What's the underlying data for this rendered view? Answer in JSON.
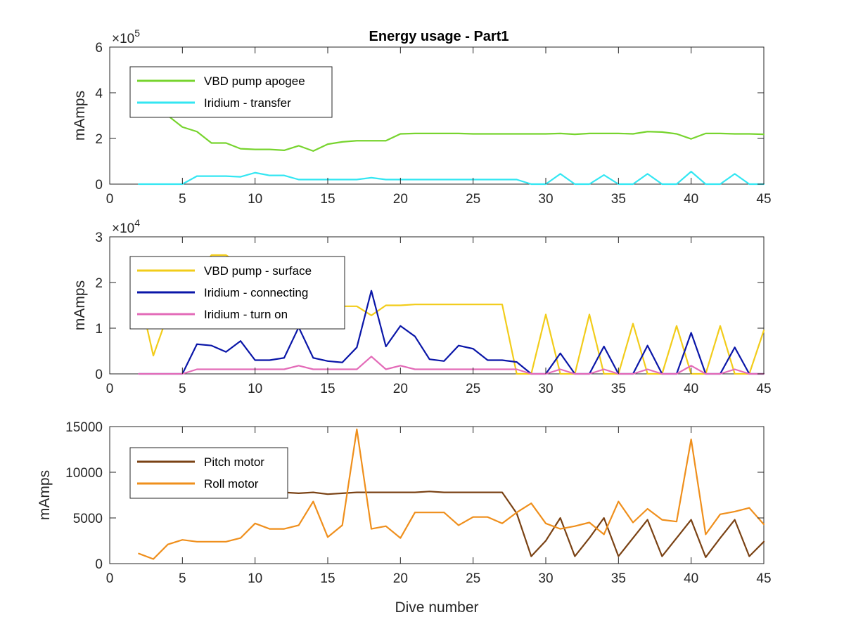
{
  "title": "Energy usage - Part1",
  "chart_data": [
    {
      "type": "line",
      "title": "Energy usage - Part1",
      "xlabel": "",
      "ylabel": "mAmps",
      "xlim": [
        0,
        45
      ],
      "ylim": [
        0,
        600000
      ],
      "xticks": [
        0,
        5,
        10,
        15,
        20,
        25,
        30,
        35,
        40,
        45
      ],
      "xtick_labels": [
        "0",
        "5",
        "10",
        "15",
        "20",
        "25",
        "30",
        "35",
        "40",
        "45"
      ],
      "yticks": [
        0,
        200000,
        400000,
        600000
      ],
      "ytick_labels": [
        "0",
        "2",
        "4",
        "6"
      ],
      "exponent_prefix": "×10",
      "exponent": "5",
      "grid": false,
      "legend_position": "top-left",
      "series": [
        {
          "name": "VBD pump apogee",
          "color": "#77d42e",
          "x": [
            2,
            3,
            4,
            5,
            6,
            7,
            8,
            9,
            10,
            11,
            12,
            13,
            14,
            15,
            16,
            17,
            18,
            19,
            20,
            21,
            22,
            23,
            24,
            25,
            26,
            27,
            28,
            29,
            30,
            31,
            32,
            33,
            34,
            35,
            36,
            37,
            38,
            39,
            40,
            41,
            42,
            43,
            44,
            45
          ],
          "values": [
            420000,
            400000,
            300000,
            250000,
            230000,
            180000,
            180000,
            155000,
            152000,
            152000,
            148000,
            168000,
            145000,
            175000,
            185000,
            190000,
            190000,
            190000,
            220000,
            222000,
            222000,
            222000,
            222000,
            220000,
            220000,
            220000,
            220000,
            220000,
            220000,
            222000,
            218000,
            222000,
            222000,
            222000,
            220000,
            230000,
            228000,
            220000,
            198000,
            222000,
            222000,
            220000,
            220000,
            218000
          ]
        },
        {
          "name": "Iridium - transfer",
          "color": "#33e6f2",
          "x": [
            2,
            3,
            4,
            5,
            6,
            7,
            8,
            9,
            10,
            11,
            12,
            13,
            14,
            15,
            16,
            17,
            18,
            19,
            20,
            21,
            22,
            23,
            24,
            25,
            26,
            27,
            28,
            29,
            30,
            31,
            32,
            33,
            34,
            35,
            36,
            37,
            38,
            39,
            40,
            41,
            42,
            43,
            44,
            45
          ],
          "values": [
            0,
            0,
            0,
            0,
            35000,
            35000,
            35000,
            32000,
            50000,
            38000,
            38000,
            20000,
            20000,
            20000,
            20000,
            20000,
            28000,
            20000,
            20000,
            20000,
            20000,
            20000,
            20000,
            20000,
            20000,
            20000,
            20000,
            0,
            0,
            45000,
            0,
            0,
            40000,
            0,
            0,
            45000,
            0,
            0,
            55000,
            0,
            0,
            45000,
            0,
            0
          ]
        }
      ]
    },
    {
      "type": "line",
      "title": "",
      "xlabel": "",
      "ylabel": "mAmps",
      "xlim": [
        0,
        45
      ],
      "ylim": [
        0,
        30000
      ],
      "xticks": [
        0,
        5,
        10,
        15,
        20,
        25,
        30,
        35,
        40,
        45
      ],
      "xtick_labels": [
        "0",
        "5",
        "10",
        "15",
        "20",
        "25",
        "30",
        "35",
        "40",
        "45"
      ],
      "yticks": [
        0,
        10000,
        20000,
        30000
      ],
      "ytick_labels": [
        "0",
        "1",
        "2",
        "3"
      ],
      "exponent_prefix": "×10",
      "exponent": "4",
      "grid": false,
      "legend_position": "top-left",
      "series": [
        {
          "name": "VBD pump - surface",
          "color": "#f2cc1a",
          "x": [
            2,
            3,
            4,
            5,
            6,
            7,
            8,
            9,
            10,
            11,
            12,
            13,
            14,
            15,
            16,
            17,
            18,
            19,
            20,
            21,
            22,
            23,
            24,
            25,
            26,
            27,
            28,
            29,
            30,
            31,
            32,
            33,
            34,
            35,
            36,
            37,
            38,
            39,
            40,
            41,
            42,
            43,
            44,
            45
          ],
          "values": [
            18000,
            4000,
            13000,
            20000,
            22000,
            26000,
            26000,
            24000,
            20000,
            17000,
            15000,
            15000,
            15000,
            14800,
            14800,
            14800,
            12800,
            15000,
            15000,
            15200,
            15200,
            15200,
            15200,
            15200,
            15200,
            15200,
            0,
            0,
            13000,
            0,
            0,
            13000,
            0,
            0,
            11000,
            0,
            0,
            10500,
            0,
            0,
            10500,
            0,
            0,
            9500
          ]
        },
        {
          "name": "Iridium - connecting",
          "color": "#0a16a8",
          "x": [
            2,
            3,
            4,
            5,
            6,
            7,
            8,
            9,
            10,
            11,
            12,
            13,
            14,
            15,
            16,
            17,
            18,
            19,
            20,
            21,
            22,
            23,
            24,
            25,
            26,
            27,
            28,
            29,
            30,
            31,
            32,
            33,
            34,
            35,
            36,
            37,
            38,
            39,
            40,
            41,
            42,
            43,
            44,
            45
          ],
          "values": [
            0,
            0,
            0,
            0,
            6500,
            6200,
            4800,
            7200,
            3000,
            3000,
            3500,
            10200,
            3500,
            2800,
            2500,
            5800,
            18200,
            6000,
            10500,
            8200,
            3200,
            2800,
            6200,
            5500,
            3000,
            3000,
            2600,
            0,
            0,
            4500,
            0,
            0,
            6000,
            0,
            0,
            6200,
            0,
            0,
            9000,
            0,
            0,
            5800,
            0,
            0
          ]
        },
        {
          "name": "Iridium - turn on",
          "color": "#e36bb8",
          "x": [
            2,
            3,
            4,
            5,
            6,
            7,
            8,
            9,
            10,
            11,
            12,
            13,
            14,
            15,
            16,
            17,
            18,
            19,
            20,
            21,
            22,
            23,
            24,
            25,
            26,
            27,
            28,
            29,
            30,
            31,
            32,
            33,
            34,
            35,
            36,
            37,
            38,
            39,
            40,
            41,
            42,
            43,
            44,
            45
          ],
          "values": [
            0,
            0,
            0,
            0,
            1000,
            1000,
            1000,
            1000,
            1000,
            1000,
            1000,
            1800,
            1000,
            1000,
            1000,
            1000,
            3800,
            1000,
            1800,
            1000,
            1000,
            1000,
            1000,
            1000,
            1000,
            1000,
            1000,
            0,
            0,
            1000,
            0,
            0,
            1000,
            0,
            0,
            1000,
            0,
            0,
            1800,
            0,
            0,
            1000,
            0,
            0
          ]
        }
      ]
    },
    {
      "type": "line",
      "title": "",
      "xlabel": "Dive number",
      "ylabel": "mAmps",
      "xlim": [
        0,
        45
      ],
      "ylim": [
        0,
        15000
      ],
      "xticks": [
        0,
        5,
        10,
        15,
        20,
        25,
        30,
        35,
        40,
        45
      ],
      "xtick_labels": [
        "0",
        "5",
        "10",
        "15",
        "20",
        "25",
        "30",
        "35",
        "40",
        "45"
      ],
      "yticks": [
        0,
        5000,
        10000,
        15000
      ],
      "ytick_labels": [
        "0",
        "5000",
        "10000",
        "15000"
      ],
      "grid": false,
      "legend_position": "top-left",
      "series": [
        {
          "name": "Pitch motor",
          "color": "#7a4214",
          "x": [
            10,
            11,
            12,
            13,
            14,
            15,
            16,
            17,
            18,
            19,
            20,
            21,
            22,
            23,
            24,
            25,
            26,
            27,
            28,
            29,
            30,
            31,
            32,
            33,
            34,
            35,
            36,
            37,
            38,
            39,
            40,
            41,
            42,
            43,
            44,
            45
          ],
          "values": [
            7800,
            7800,
            7800,
            7700,
            7800,
            7600,
            7700,
            7800,
            7800,
            7800,
            7800,
            7800,
            7900,
            7800,
            7800,
            7800,
            7800,
            7800,
            5500,
            800,
            2500,
            5000,
            800,
            2800,
            5000,
            800,
            2800,
            4800,
            800,
            2800,
            4800,
            700,
            2800,
            4800,
            800,
            2400
          ]
        },
        {
          "name": "Roll motor",
          "color": "#ef8f1c",
          "x": [
            2,
            3,
            4,
            5,
            6,
            7,
            8,
            9,
            10,
            11,
            12,
            13,
            14,
            15,
            16,
            17,
            18,
            19,
            20,
            21,
            22,
            23,
            24,
            25,
            26,
            27,
            28,
            29,
            30,
            31,
            32,
            33,
            34,
            35,
            36,
            37,
            38,
            39,
            40,
            41,
            42,
            43,
            44,
            45
          ],
          "values": [
            1100,
            500,
            2100,
            2600,
            2400,
            2400,
            2400,
            2800,
            4400,
            3800,
            3800,
            4200,
            6800,
            2900,
            4200,
            14700,
            3800,
            4100,
            2800,
            5600,
            5600,
            5600,
            4200,
            5100,
            5100,
            4400,
            5600,
            6600,
            4400,
            3800,
            4100,
            4500,
            3200,
            6800,
            4500,
            6000,
            4800,
            4600,
            13600,
            3200,
            5400,
            5700,
            6100,
            4300
          ]
        }
      ]
    }
  ]
}
